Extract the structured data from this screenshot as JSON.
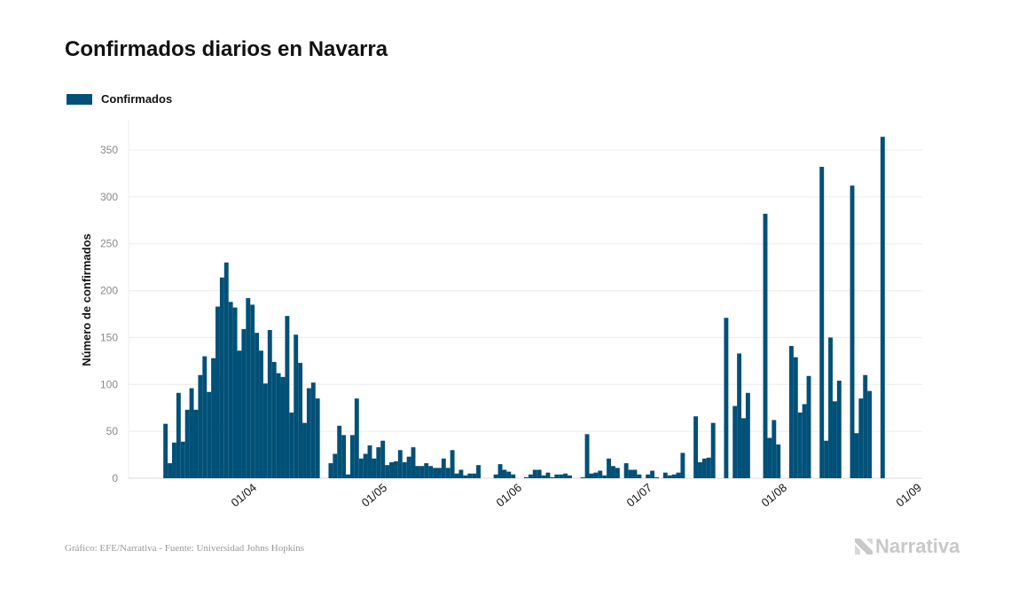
{
  "colors": {
    "bar": "#005077",
    "grid": "#ececec",
    "tick_text": "#8a8a8a",
    "footer": "#999999",
    "logo": "#c8c8c8"
  },
  "footer": {
    "source": "Gráfico: EFE/Narrativa - Fuente: Universidad Johns Hopkins"
  },
  "logo": {
    "text": "Narrativa",
    "icon": "narrativa-n-icon"
  },
  "chart_data": {
    "type": "bar",
    "title": "Confirmados diarios en Navarra",
    "ylabel": "Número de confirmados",
    "xlabel": "",
    "legend": {
      "entries": [
        "Confirmados"
      ],
      "placement": "top-left"
    },
    "grid": true,
    "ylim": [
      0,
      380
    ],
    "yticks": [
      0,
      50,
      100,
      150,
      200,
      250,
      300,
      350
    ],
    "xlim": [
      "2020-03-04",
      "2020-09-02"
    ],
    "xticks": [
      {
        "date": "2020-04-01",
        "label": "01/04"
      },
      {
        "date": "2020-05-01",
        "label": "01/05"
      },
      {
        "date": "2020-06-01",
        "label": "01/06"
      },
      {
        "date": "2020-07-01",
        "label": "01/07"
      },
      {
        "date": "2020-08-01",
        "label": "01/08"
      },
      {
        "date": "2020-09-01",
        "label": "01/09"
      }
    ],
    "series": [
      {
        "name": "Confirmados",
        "x": [
          "2020-03-12",
          "2020-03-13",
          "2020-03-14",
          "2020-03-15",
          "2020-03-16",
          "2020-03-17",
          "2020-03-18",
          "2020-03-19",
          "2020-03-20",
          "2020-03-21",
          "2020-03-22",
          "2020-03-23",
          "2020-03-24",
          "2020-03-25",
          "2020-03-26",
          "2020-03-27",
          "2020-03-28",
          "2020-03-29",
          "2020-03-30",
          "2020-03-31",
          "2020-04-01",
          "2020-04-02",
          "2020-04-03",
          "2020-04-04",
          "2020-04-05",
          "2020-04-06",
          "2020-04-07",
          "2020-04-08",
          "2020-04-09",
          "2020-04-10",
          "2020-04-11",
          "2020-04-12",
          "2020-04-13",
          "2020-04-14",
          "2020-04-15",
          "2020-04-16",
          "2020-04-17",
          "2020-04-18",
          "2020-04-19",
          "2020-04-20",
          "2020-04-21",
          "2020-04-22",
          "2020-04-23",
          "2020-04-24",
          "2020-04-25",
          "2020-04-26",
          "2020-04-27",
          "2020-04-28",
          "2020-04-29",
          "2020-04-30",
          "2020-05-01",
          "2020-05-02",
          "2020-05-03",
          "2020-05-04",
          "2020-05-05",
          "2020-05-06",
          "2020-05-07",
          "2020-05-08",
          "2020-05-09",
          "2020-05-10",
          "2020-05-11",
          "2020-05-12",
          "2020-05-13",
          "2020-05-14",
          "2020-05-15",
          "2020-05-16",
          "2020-05-17",
          "2020-05-18",
          "2020-05-19",
          "2020-05-20",
          "2020-05-21",
          "2020-05-22",
          "2020-05-23",
          "2020-05-24",
          "2020-05-25",
          "2020-05-26",
          "2020-05-27",
          "2020-05-28",
          "2020-05-29",
          "2020-05-30",
          "2020-05-31",
          "2020-06-01",
          "2020-06-02",
          "2020-06-03",
          "2020-06-04",
          "2020-06-05",
          "2020-06-06",
          "2020-06-07",
          "2020-06-08",
          "2020-06-09",
          "2020-06-10",
          "2020-06-11",
          "2020-06-12",
          "2020-06-13",
          "2020-06-14",
          "2020-06-15",
          "2020-06-16",
          "2020-06-17",
          "2020-06-18",
          "2020-06-19",
          "2020-06-20",
          "2020-06-21",
          "2020-06-22",
          "2020-06-23",
          "2020-06-24",
          "2020-06-25",
          "2020-06-26",
          "2020-06-27",
          "2020-06-28",
          "2020-06-29",
          "2020-06-30",
          "2020-07-01",
          "2020-07-02",
          "2020-07-03",
          "2020-07-04",
          "2020-07-05",
          "2020-07-06",
          "2020-07-07",
          "2020-07-08",
          "2020-07-09",
          "2020-07-10",
          "2020-07-11",
          "2020-07-12",
          "2020-07-13",
          "2020-07-14",
          "2020-07-15",
          "2020-07-16",
          "2020-07-17",
          "2020-07-18",
          "2020-07-19",
          "2020-07-20",
          "2020-07-21",
          "2020-07-22",
          "2020-07-23",
          "2020-07-24",
          "2020-07-25",
          "2020-07-26",
          "2020-07-27",
          "2020-07-28",
          "2020-07-29",
          "2020-07-30",
          "2020-07-31",
          "2020-08-01",
          "2020-08-02",
          "2020-08-03",
          "2020-08-04",
          "2020-08-05",
          "2020-08-06",
          "2020-08-07",
          "2020-08-08",
          "2020-08-09",
          "2020-08-10",
          "2020-08-11",
          "2020-08-12",
          "2020-08-13",
          "2020-08-14",
          "2020-08-15",
          "2020-08-16",
          "2020-08-17",
          "2020-08-18",
          "2020-08-19",
          "2020-08-20",
          "2020-08-21",
          "2020-08-22",
          "2020-08-23",
          "2020-08-24"
        ],
        "values": [
          58,
          16,
          38,
          91,
          39,
          73,
          96,
          73,
          110,
          130,
          92,
          128,
          183,
          214,
          230,
          188,
          182,
          136,
          159,
          192,
          185,
          155,
          136,
          101,
          158,
          124,
          112,
          108,
          173,
          70,
          153,
          123,
          59,
          96,
          102,
          85,
          0,
          0,
          16,
          26,
          56,
          46,
          4,
          46,
          85,
          21,
          26,
          35,
          21,
          33,
          40,
          14,
          17,
          18,
          30,
          17,
          23,
          33,
          13,
          13,
          16,
          13,
          11,
          11,
          21,
          11,
          30,
          5,
          9,
          3,
          5,
          5,
          14,
          0,
          0,
          0,
          4,
          15,
          9,
          7,
          4,
          0,
          0,
          1,
          4,
          9,
          9,
          3,
          6,
          1,
          4,
          4,
          5,
          3,
          0,
          0,
          1,
          47,
          5,
          6,
          8,
          3,
          21,
          13,
          11,
          0,
          16,
          9,
          9,
          4,
          0,
          4,
          8,
          1,
          0,
          6,
          3,
          4,
          6,
          27,
          0,
          0,
          66,
          17,
          21,
          22,
          59,
          0,
          0,
          171,
          0,
          77,
          133,
          64,
          91,
          0,
          0,
          0,
          282,
          43,
          62,
          36,
          0,
          0,
          141,
          129,
          70,
          79,
          109,
          0,
          0,
          332,
          40,
          150,
          82,
          104,
          0,
          0,
          312,
          48,
          85,
          110,
          93,
          0,
          0,
          364
        ]
      }
    ]
  }
}
